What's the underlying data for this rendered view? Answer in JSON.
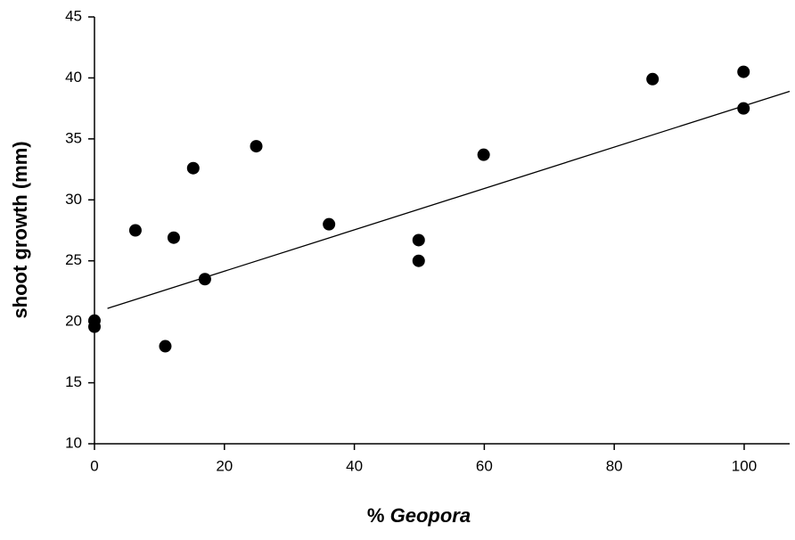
{
  "chart_data": {
    "type": "scatter",
    "xlabel": [
      "%",
      "Geopora"
    ],
    "ylabel": "shoot growth (mm)",
    "x": [
      0,
      0,
      6.3,
      10.9,
      12.2,
      15.2,
      17.0,
      24.9,
      36.1,
      49.9,
      49.9,
      59.9,
      85.9,
      99.9,
      99.9
    ],
    "y": [
      20.1,
      19.6,
      27.5,
      18.0,
      26.9,
      32.6,
      23.5,
      34.4,
      28.0,
      26.7,
      25.0,
      33.7,
      39.9,
      40.5,
      37.5
    ],
    "color": "#000000",
    "trendline": {
      "x": [
        2,
        107
      ],
      "y": [
        21.1,
        38.9
      ]
    },
    "xlim": [
      0,
      107
    ],
    "ylim": [
      10,
      45
    ],
    "xticks": [
      0,
      20,
      40,
      60,
      80,
      100
    ],
    "yticks": [
      10,
      15,
      20,
      25,
      30,
      35,
      40,
      45
    ]
  }
}
